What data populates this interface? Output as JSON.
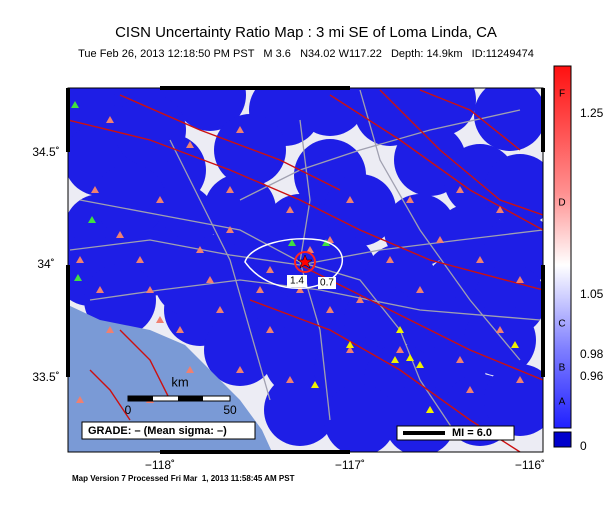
{
  "header": {
    "title": "CISN Uncertainty Ratio Map : 3 mi SE of Loma Linda, CA",
    "subtitle": "Tue Feb 26, 2013 12:18:50 PM PST   M 3.6   N34.02 W117.22   Depth: 14.9km   ID:11249474"
  },
  "map": {
    "lat_labels": [
      "34.5˚",
      "34˚",
      "33.5˚"
    ],
    "lon_labels": [
      "−118˚",
      "−117˚",
      "−116˚"
    ],
    "contour_labels": [
      "1.4",
      "0.7"
    ],
    "scale": {
      "title": "km",
      "labels": [
        "0",
        "50"
      ]
    },
    "grade": "GRADE: – (Mean sigma: –)",
    "mi_legend": "MI = 6.0"
  },
  "colorbar": {
    "grades": [
      "F",
      "D",
      "C",
      "B",
      "A"
    ],
    "values": [
      "1.25",
      "1.05",
      "0.98",
      "0.96",
      "0"
    ]
  },
  "footer": "Map Version 7 Processed Fri Mar  1, 2013 11:58:45 AM PST"
}
